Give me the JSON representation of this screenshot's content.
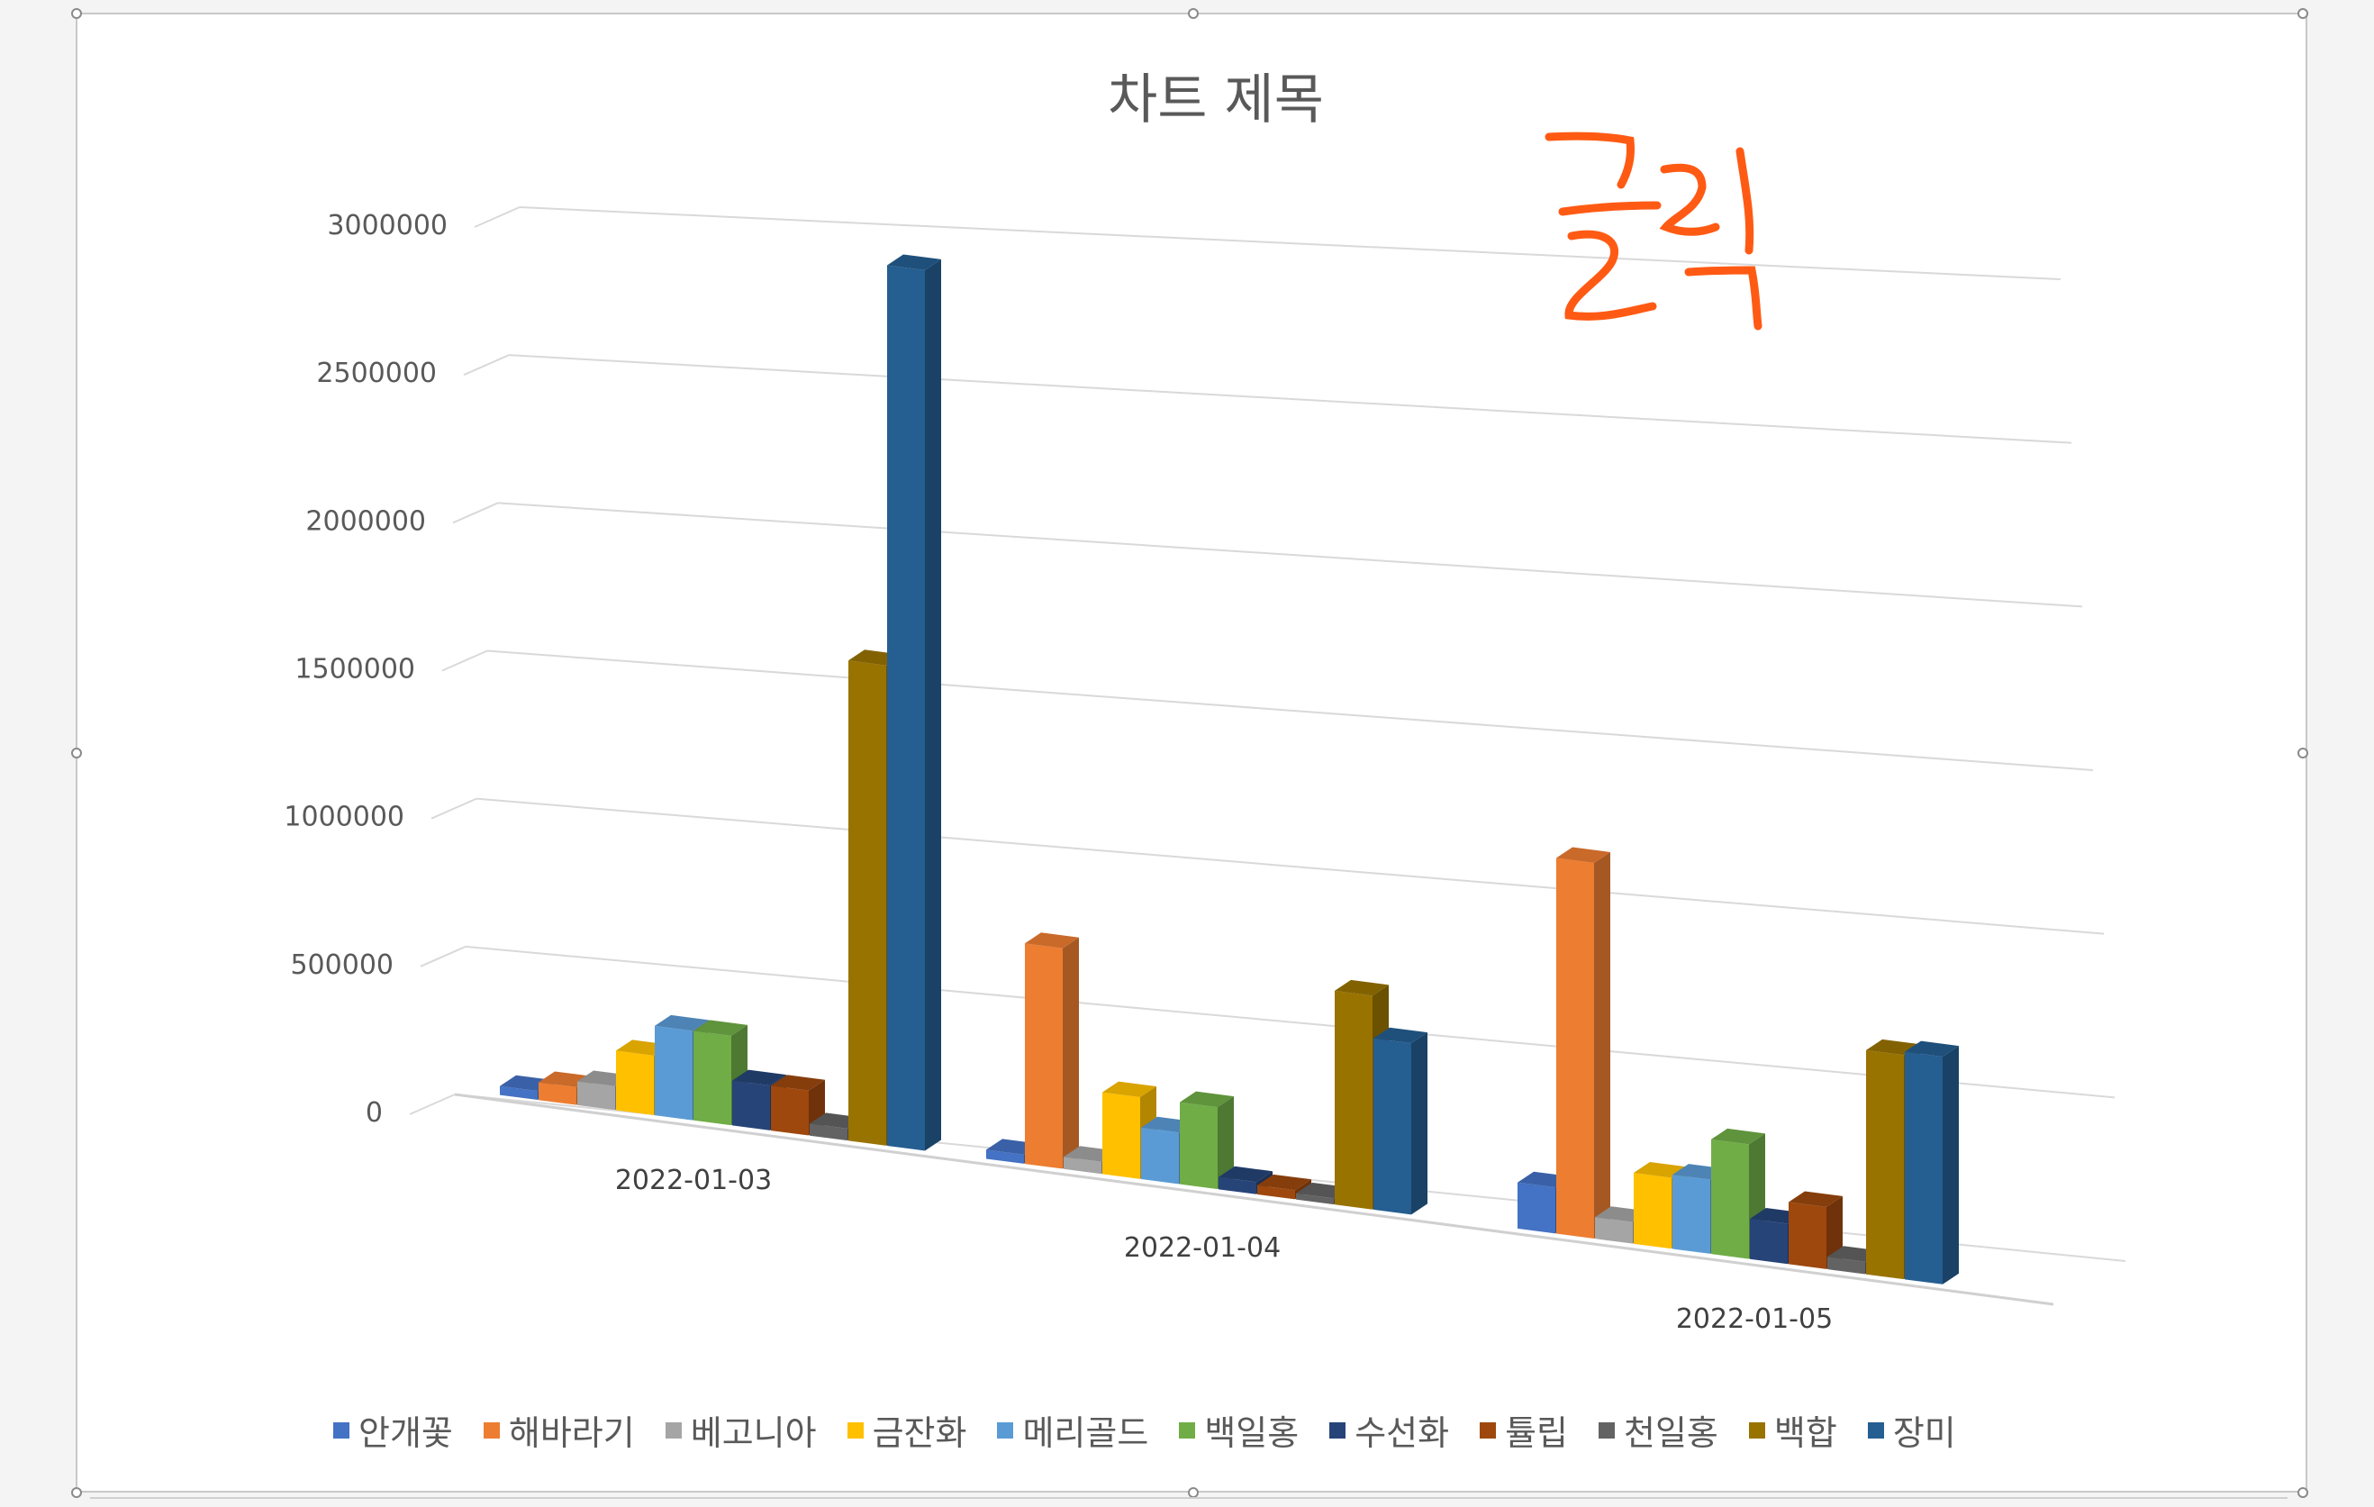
{
  "chart_data": {
    "type": "bar",
    "style": "3d-clustered-column",
    "title": "차트 제목",
    "categories": [
      "2022-01-03",
      "2022-01-04",
      "2022-01-05"
    ],
    "y_ticks": [
      "0",
      "500000",
      "1000000",
      "1500000",
      "2000000",
      "2500000",
      "3000000"
    ],
    "ylim": [
      0,
      3000000
    ],
    "gridlines": true,
    "legend_position": "bottom",
    "series": [
      {
        "name": "안개꽃",
        "color": "#4472C4",
        "values": [
          30000,
          30000,
          150000
        ]
      },
      {
        "name": "해바라기",
        "color": "#ED7D31",
        "values": [
          60000,
          730000,
          1220000
        ]
      },
      {
        "name": "베고니아",
        "color": "#A5A5A5",
        "values": [
          80000,
          40000,
          70000
        ]
      },
      {
        "name": "금잔화",
        "color": "#FFC000",
        "values": [
          200000,
          270000,
          230000
        ]
      },
      {
        "name": "메리골드",
        "color": "#5B9BD5",
        "values": [
          300000,
          170000,
          240000
        ]
      },
      {
        "name": "백일홍",
        "color": "#70AD47",
        "values": [
          300000,
          270000,
          370000
        ]
      },
      {
        "name": "수선화",
        "color": "#264478",
        "values": [
          150000,
          40000,
          130000
        ]
      },
      {
        "name": "튤립",
        "color": "#9E480E",
        "values": [
          150000,
          30000,
          200000
        ]
      },
      {
        "name": "천일홍",
        "color": "#636363",
        "values": [
          40000,
          20000,
          40000
        ]
      },
      {
        "name": "백합",
        "color": "#997300",
        "values": [
          1600000,
          700000,
          720000
        ]
      },
      {
        "name": "장미",
        "color": "#255E91",
        "values": [
          2930000,
          560000,
          730000
        ]
      }
    ]
  },
  "annotation": {
    "text": "클릭",
    "color": "#FF5A14"
  }
}
